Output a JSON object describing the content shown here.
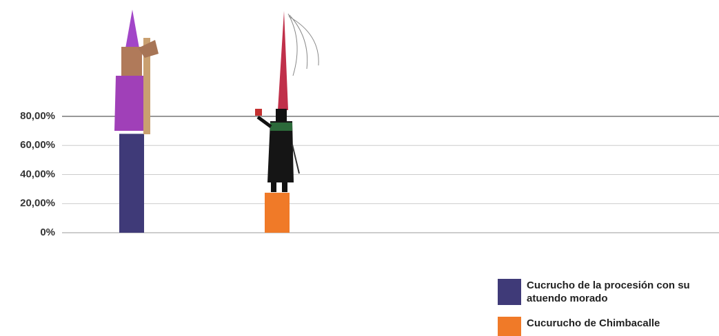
{
  "chart_data": {
    "type": "bar",
    "series": [
      {
        "name": "Cucrucho de la procesión con su atuendo morado",
        "color": "#3f3a78",
        "values": [
          68
        ]
      },
      {
        "name": "Cucurucho de Chimbacalle",
        "color": "#f07a28",
        "values": [
          27.5
        ]
      }
    ],
    "ylim": [
      0,
      80
    ],
    "yticks": [
      {
        "value": 0,
        "label": "0%"
      },
      {
        "value": 20,
        "label": "20,00%"
      },
      {
        "value": 40,
        "label": "40,00%"
      },
      {
        "value": 60,
        "label": "60,00%"
      },
      {
        "value": 80,
        "label": "80,00%"
      }
    ],
    "grid": true,
    "legend": "bottom-right"
  }
}
